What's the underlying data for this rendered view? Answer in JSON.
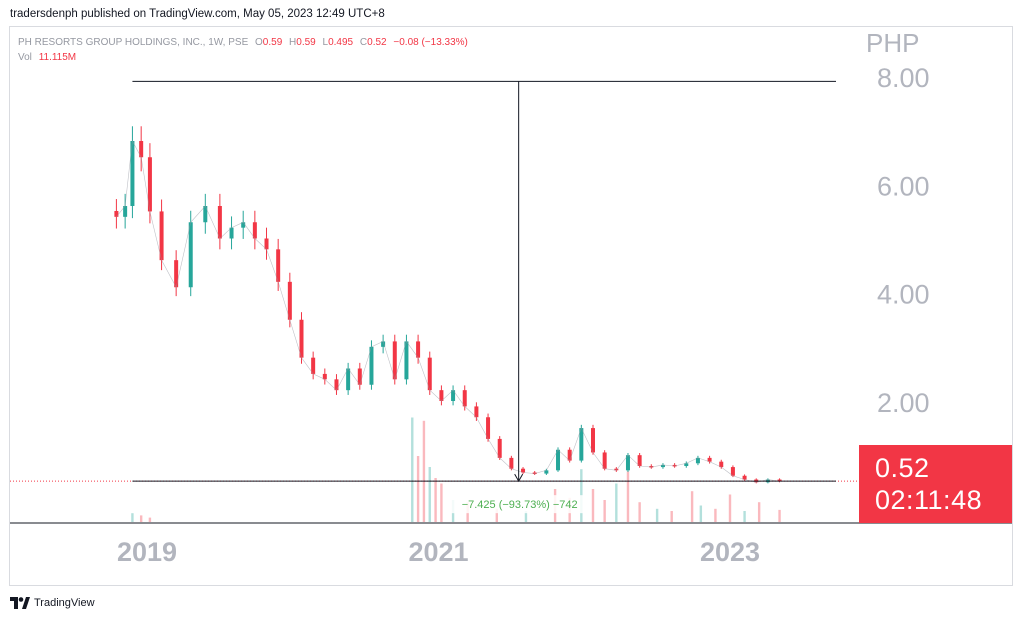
{
  "header": {
    "published": "tradersdenph published on TradingView.com, May 05, 2023 12:49 UTC+8"
  },
  "legend": {
    "symbol": "PH RESORTS GROUP HOLDINGS, INC., 1W, PSE",
    "o_label": "O",
    "o": "0.59",
    "h_label": "H",
    "h": "0.59",
    "l_label": "L",
    "l": "0.495",
    "c_label": "C",
    "c": "0.52",
    "change": "−0.08 (−13.33%)",
    "vol_label": "Vol",
    "vol": "11.115M"
  },
  "price_scale": {
    "currency": "PHP",
    "ticks": [
      "8.00",
      "6.00",
      "4.00",
      "2.00"
    ]
  },
  "last_price_label": {
    "price": "0.52",
    "countdown": "02:11:48"
  },
  "measure_label": "−7.425 (−93.73%) −742",
  "footer": {
    "brand": "TradingView"
  },
  "colors": {
    "up": "#26a69a",
    "down": "#f23645",
    "axis_text": "#b2b5be"
  },
  "chart_data": {
    "type": "line",
    "title": "PH RESORTS GROUP HOLDINGS, INC., 1W, PSE",
    "xlabel": "",
    "ylabel": "",
    "x_ticks": [
      "2019",
      "2021",
      "2023"
    ],
    "ylim": [
      0,
      8.15
    ],
    "grid": false,
    "note_values": "approximate weekly closes read from candles",
    "series": [
      {
        "x": [
          2018.79,
          2018.85,
          2018.9,
          2018.96,
          2019.02,
          2019.1,
          2019.2,
          2019.3,
          2019.4,
          2019.5,
          2019.58,
          2019.66,
          2019.74,
          2019.82,
          2019.9,
          2019.98,
          2020.06,
          2020.14,
          2020.22,
          2020.3,
          2020.38,
          2020.46,
          2020.54,
          2020.62,
          2020.7,
          2020.78,
          2020.86,
          2020.94,
          2021.02,
          2021.1,
          2021.18,
          2021.26,
          2021.34,
          2021.42,
          2021.5,
          2021.58,
          2021.66,
          2021.74,
          2021.82,
          2021.9,
          2021.98,
          2022.06,
          2022.14,
          2022.22,
          2022.3,
          2022.38,
          2022.46,
          2022.54,
          2022.62,
          2022.7,
          2022.78,
          2022.86,
          2022.94,
          2023.02,
          2023.1,
          2023.18,
          2023.26,
          2023.34
        ],
        "y": [
          5.4,
          5.6,
          6.8,
          6.5,
          5.5,
          4.6,
          4.1,
          5.3,
          5.6,
          5.0,
          5.2,
          5.3,
          5.0,
          4.8,
          4.2,
          3.5,
          2.8,
          2.5,
          2.4,
          2.2,
          2.6,
          2.3,
          3.0,
          3.1,
          2.4,
          3.1,
          2.8,
          2.2,
          2.0,
          2.2,
          1.9,
          1.7,
          1.3,
          0.95,
          0.75,
          0.68,
          0.66,
          0.72,
          1.1,
          0.9,
          1.5,
          1.05,
          0.75,
          0.72,
          1.0,
          0.8,
          0.78,
          0.82,
          0.8,
          0.85,
          0.95,
          0.88,
          0.78,
          0.62,
          0.55,
          0.5,
          0.55,
          0.52
        ]
      }
    ],
    "volume": {
      "x": [
        2018.9,
        2018.96,
        2019.02,
        2020.82,
        2020.86,
        2020.9,
        2020.94,
        2020.98,
        2021.02,
        2021.1,
        2021.2,
        2021.4,
        2021.6,
        2021.8,
        2021.9,
        2021.98,
        2022.06,
        2022.14,
        2022.22,
        2022.3,
        2022.38,
        2022.5,
        2022.6,
        2022.74,
        2022.8,
        2022.9,
        2023.0,
        2023.1,
        2023.2,
        2023.34
      ],
      "values": [
        8,
        6,
        4,
        95,
        60,
        92,
        50,
        40,
        35,
        20,
        18,
        12,
        10,
        30,
        22,
        48,
        30,
        20,
        35,
        46,
        18,
        12,
        10,
        28,
        15,
        12,
        25,
        10,
        18,
        11
      ]
    },
    "annotations": [
      {
        "type": "measure",
        "from": {
          "x": 2018.9,
          "y": 7.9
        },
        "to": {
          "x": 2021.55,
          "y": 0.52
        },
        "label": "−7.425 (−93.73%) −742"
      }
    ]
  }
}
